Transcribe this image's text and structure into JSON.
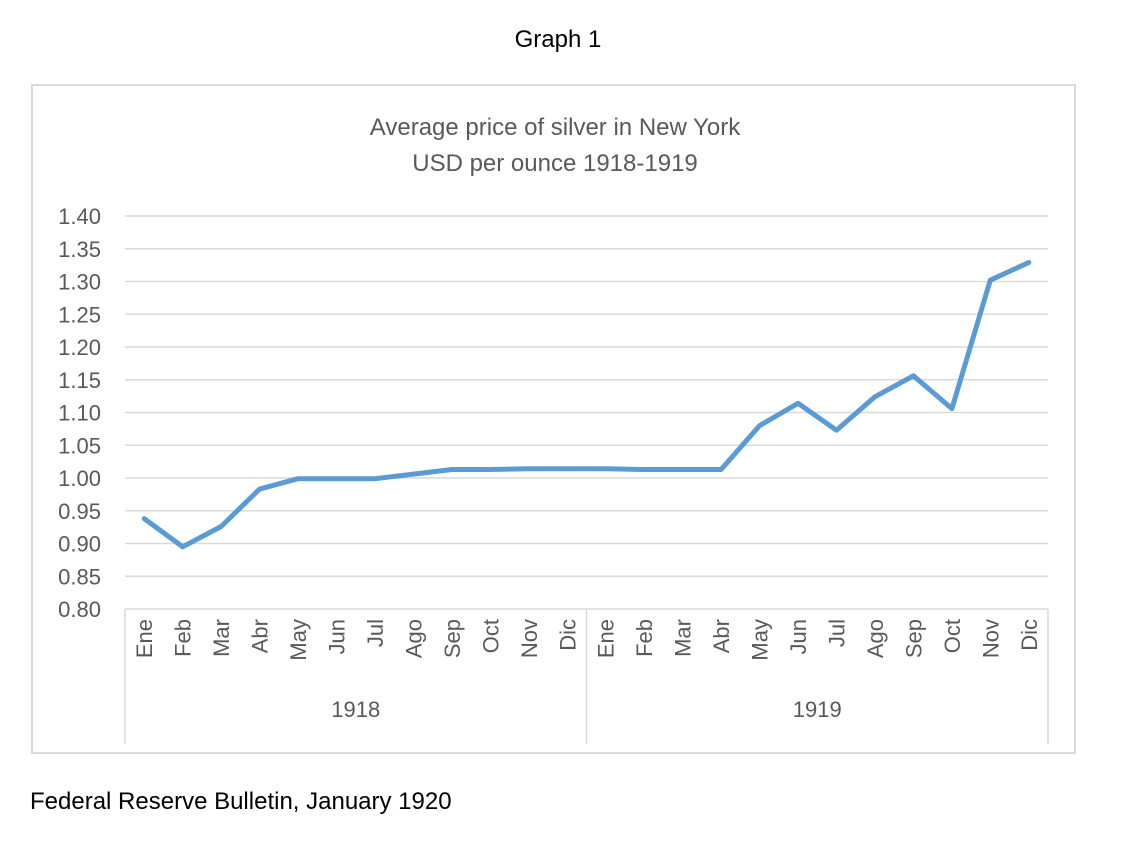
{
  "page": {
    "heading": "Graph 1",
    "source": "Federal Reserve Bulletin, January 1920"
  },
  "chart_data": {
    "type": "line",
    "title": "Average price of silver in New York",
    "subtitle": "USD per ounce 1918-1919",
    "xlabel": "",
    "ylabel": "",
    "ylim": [
      0.8,
      1.4
    ],
    "y_ticks": [
      "1.40",
      "1.35",
      "1.30",
      "1.25",
      "1.20",
      "1.15",
      "1.10",
      "1.05",
      "1.00",
      "0.95",
      "0.90",
      "0.85",
      "0.80"
    ],
    "grid": true,
    "legend": "none",
    "categories": [
      "Ene",
      "Feb",
      "Mar",
      "Abr",
      "May",
      "Jun",
      "Jul",
      "Ago",
      "Sep",
      "Oct",
      "Nov",
      "Dic",
      "Ene",
      "Feb",
      "Mar",
      "Abr",
      "May",
      "Jun",
      "Jul",
      "Ago",
      "Sep",
      "Oct",
      "Nov",
      "Dic"
    ],
    "groups": [
      {
        "label": "1918",
        "count": 12
      },
      {
        "label": "1919",
        "count": 12
      }
    ],
    "series": [
      {
        "values": [
          0.938,
          0.895,
          0.926,
          0.983,
          0.999,
          0.999,
          0.999,
          1.006,
          1.013,
          1.013,
          1.014,
          1.014,
          1.014,
          1.013,
          1.013,
          1.013,
          1.08,
          1.114,
          1.073,
          1.124,
          1.156,
          1.106,
          1.302,
          1.329
        ],
        "color": "#5b9bd5"
      }
    ]
  }
}
